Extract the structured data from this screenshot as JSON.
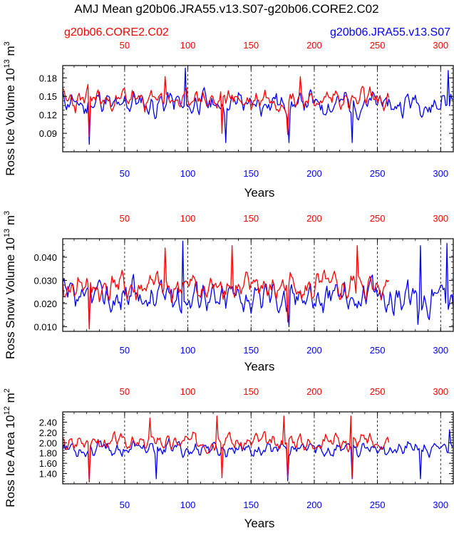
{
  "title": "AMJ Mean g20b06.JRA55.v13.S07-g20b06.CORE2.C02",
  "legend": {
    "left": "g20b06.CORE2.C02",
    "right": "g20b06.JRA55.v13.S07"
  },
  "colors": {
    "core2": "#ff0000",
    "jra55": "#0000ff",
    "axis": "#000000"
  },
  "chart_data": [
    {
      "type": "line",
      "id": "volume",
      "ylabel_main": "Ross Ice Volume 10",
      "ylabel_exp": "13",
      "ylabel_unit": "m",
      "ylabel_unit_exp": "3",
      "xlabel": "Years",
      "xlim": [
        1,
        310
      ],
      "ylim": [
        0.06,
        0.2
      ],
      "yticks": [
        0.09,
        0.12,
        0.15,
        0.18
      ],
      "ytick_labels": [
        "0.09",
        "0.12",
        "0.15",
        "0.18"
      ],
      "xticks": [
        50,
        100,
        150,
        200,
        250,
        300
      ],
      "xtick_labels": [
        "50",
        "100",
        "150",
        "200",
        "250",
        "300"
      ],
      "vlines": [
        50,
        100,
        150,
        200,
        250,
        300
      ],
      "series": [
        {
          "name": "g20b06.JRA55.v13.S07",
          "color": "blue",
          "n": 310,
          "base": 0.138,
          "amp": 0.022,
          "phase": 0.3,
          "seed": 11,
          "dips": [
            {
              "x": 22,
              "y": 0.072
            },
            {
              "x": 130,
              "y": 0.075
            },
            {
              "x": 180,
              "y": 0.075
            },
            {
              "x": 230,
              "y": 0.075
            }
          ],
          "peaks": [
            {
              "x": 98,
              "y": 0.196
            },
            {
              "x": 306,
              "y": 0.192
            }
          ]
        },
        {
          "name": "g20b06.CORE2.C02",
          "color": "red",
          "n": 259,
          "base": 0.145,
          "amp": 0.02,
          "phase": 1.1,
          "seed": 23,
          "dips": [
            {
              "x": 22,
              "y": 0.085
            },
            {
              "x": 127,
              "y": 0.09
            },
            {
              "x": 179,
              "y": 0.088
            }
          ],
          "peaks": [
            {
              "x": 82,
              "y": 0.182
            },
            {
              "x": 189,
              "y": 0.182
            }
          ]
        }
      ]
    },
    {
      "type": "line",
      "id": "snow",
      "ylabel_main": "Ross Snow Volume 10",
      "ylabel_exp": "13",
      "ylabel_unit": "m",
      "ylabel_unit_exp": "3",
      "xlabel": "Years",
      "xlim": [
        1,
        310
      ],
      "ylim": [
        0.008,
        0.048
      ],
      "yticks": [
        0.01,
        0.02,
        0.03,
        0.04
      ],
      "ytick_labels": [
        "0.010",
        "0.020",
        "0.030",
        "0.040"
      ],
      "xticks": [
        50,
        100,
        150,
        200,
        250,
        300
      ],
      "xtick_labels": [
        "50",
        "100",
        "150",
        "200",
        "250",
        "300"
      ],
      "vlines": [
        50,
        100,
        150,
        200,
        250,
        300
      ],
      "series": [
        {
          "name": "g20b06.JRA55.v13.S07",
          "color": "blue",
          "n": 310,
          "base": 0.023,
          "amp": 0.008,
          "phase": 0.7,
          "seed": 37,
          "dips": [
            {
              "x": 22,
              "y": 0.01
            },
            {
              "x": 180,
              "y": 0.01
            },
            {
              "x": 282,
              "y": 0.011
            }
          ],
          "peaks": [
            {
              "x": 96,
              "y": 0.047
            },
            {
              "x": 284,
              "y": 0.045
            },
            {
              "x": 305,
              "y": 0.046
            }
          ]
        },
        {
          "name": "g20b06.CORE2.C02",
          "color": "red",
          "n": 259,
          "base": 0.027,
          "amp": 0.007,
          "phase": 2.0,
          "seed": 41,
          "dips": [
            {
              "x": 22,
              "y": 0.009
            },
            {
              "x": 179,
              "y": 0.012
            }
          ],
          "peaks": [
            {
              "x": 82,
              "y": 0.044
            },
            {
              "x": 135,
              "y": 0.045
            },
            {
              "x": 234,
              "y": 0.045
            }
          ]
        }
      ]
    },
    {
      "type": "line",
      "id": "area",
      "ylabel_main": "Ross Ice Area 10",
      "ylabel_exp": "12",
      "ylabel_unit": "m",
      "ylabel_unit_exp": "2",
      "xlabel": "Years",
      "xlim": [
        1,
        310
      ],
      "ylim": [
        1.2,
        2.6
      ],
      "yticks": [
        1.4,
        1.6,
        1.8,
        2.0,
        2.2,
        2.4
      ],
      "ytick_labels": [
        "1.40",
        "1.60",
        "1.80",
        "2.00",
        "2.20",
        "2.40"
      ],
      "xticks": [
        50,
        100,
        150,
        200,
        250,
        300
      ],
      "xtick_labels": [
        "50",
        "100",
        "150",
        "200",
        "250",
        "300"
      ],
      "vlines": [
        50,
        100,
        150,
        200,
        250,
        300
      ],
      "series": [
        {
          "name": "g20b06.JRA55.v13.S07",
          "color": "blue",
          "n": 310,
          "base": 1.88,
          "amp": 0.17,
          "phase": 0.2,
          "seed": 53,
          "dips": [
            {
              "x": 22,
              "y": 1.24
            },
            {
              "x": 75,
              "y": 1.3
            },
            {
              "x": 179,
              "y": 1.26
            },
            {
              "x": 230,
              "y": 1.3
            },
            {
              "x": 284,
              "y": 1.3
            }
          ],
          "peaks": [
            {
              "x": 307,
              "y": 2.25
            }
          ]
        },
        {
          "name": "g20b06.CORE2.C02",
          "color": "red",
          "n": 259,
          "base": 2.02,
          "amp": 0.18,
          "phase": 1.6,
          "seed": 67,
          "dips": [
            {
              "x": 22,
              "y": 1.24
            },
            {
              "x": 127,
              "y": 1.32
            },
            {
              "x": 179,
              "y": 1.32
            },
            {
              "x": 230,
              "y": 1.32
            }
          ],
          "peaks": [
            {
              "x": 70,
              "y": 2.48
            },
            {
              "x": 123,
              "y": 2.52
            },
            {
              "x": 176,
              "y": 2.52
            },
            {
              "x": 229,
              "y": 2.52
            }
          ]
        }
      ]
    }
  ]
}
